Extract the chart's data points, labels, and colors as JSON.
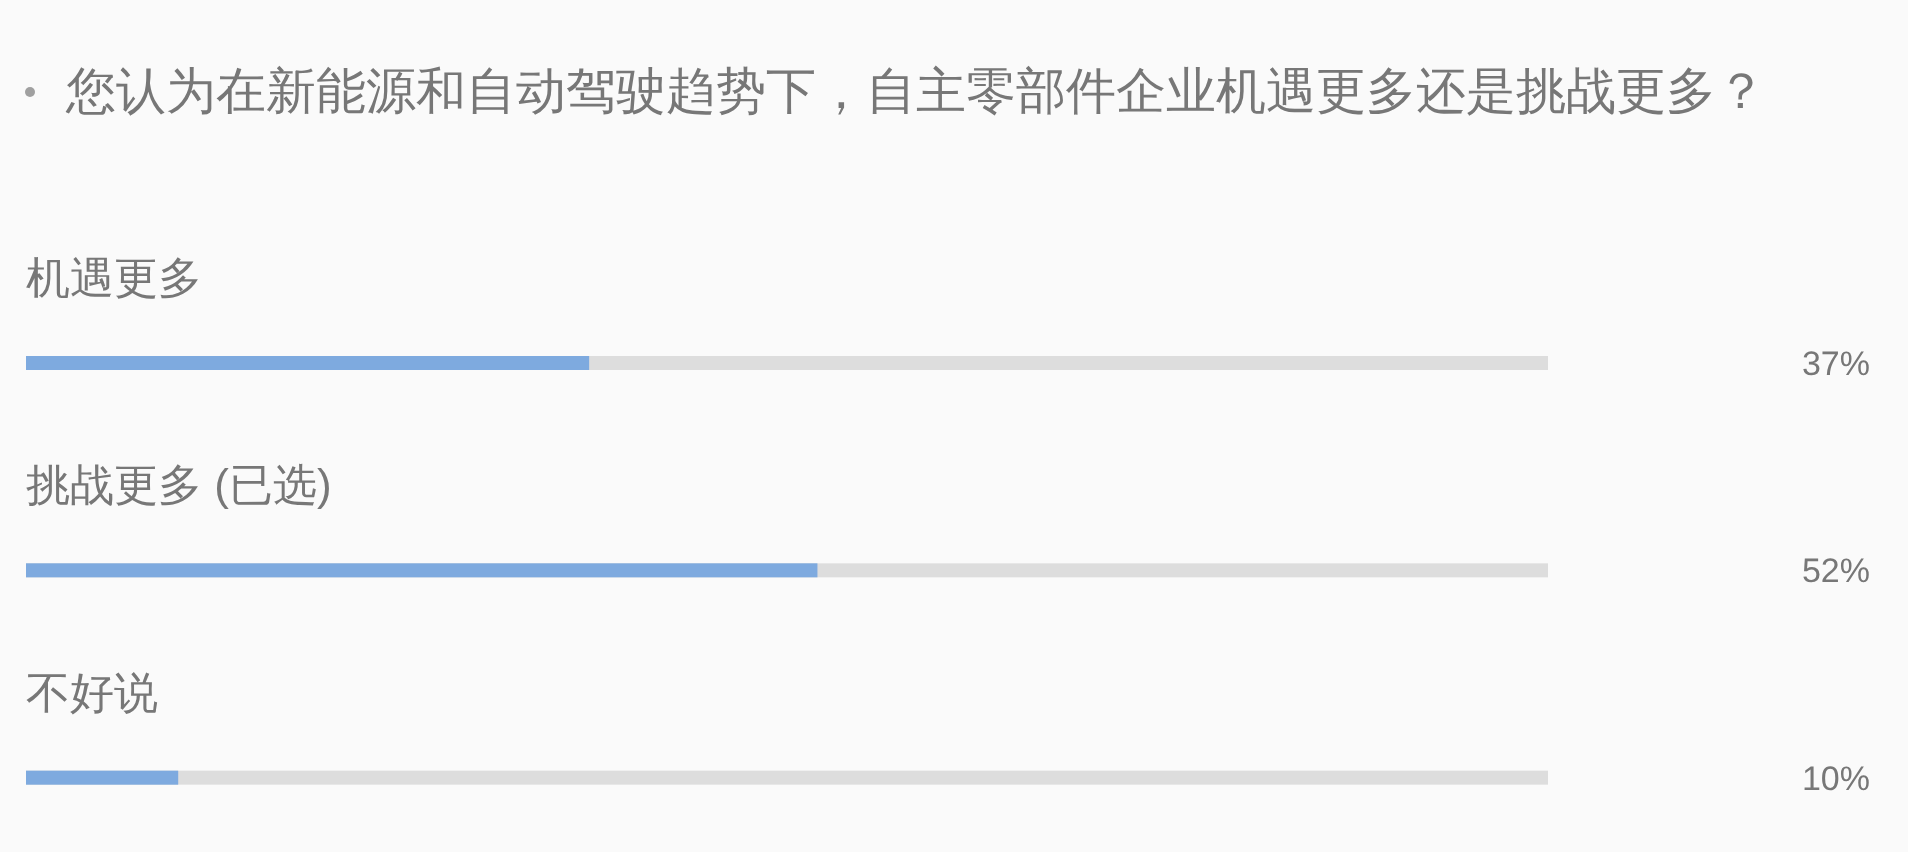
{
  "chart_data": {
    "type": "bar",
    "orientation": "horizontal",
    "title": "您认为在新能源和自动驾驶趋势下，自主零部件企业机遇更多还是挑战更多？",
    "categories": [
      "机遇更多",
      "挑战更多 (已选)",
      "不好说"
    ],
    "values": [
      37,
      52,
      10
    ],
    "value_labels": [
      "37%",
      "52%",
      "10%"
    ],
    "color": "#7eaadf",
    "xlim": [
      0,
      100
    ]
  }
}
